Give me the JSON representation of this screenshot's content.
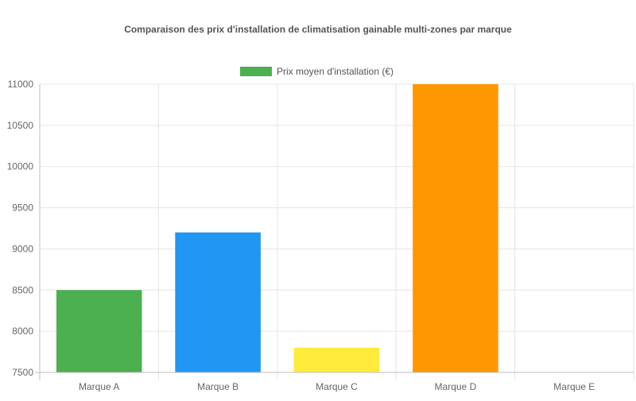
{
  "chart_data": {
    "type": "bar",
    "title": "Comparaison des prix d'installation de climatisation gainable multi-zones par marque",
    "xlabel": "",
    "ylabel": "",
    "categories": [
      "Marque A",
      "Marque B",
      "Marque C",
      "Marque D",
      "Marque E"
    ],
    "series": [
      {
        "name": "Prix moyen d'installation (€)",
        "values": [
          8500,
          9200,
          7800,
          11000,
          7500
        ],
        "colors": [
          "#4caf50",
          "#2196f3",
          "#ffeb3b",
          "#ff9800",
          "#9c27b0"
        ]
      }
    ],
    "ylim": [
      7500,
      11000
    ],
    "yticks": [
      7500,
      8000,
      8500,
      9000,
      9500,
      10000,
      10500,
      11000
    ],
    "legend_position": "top",
    "grid": true
  }
}
